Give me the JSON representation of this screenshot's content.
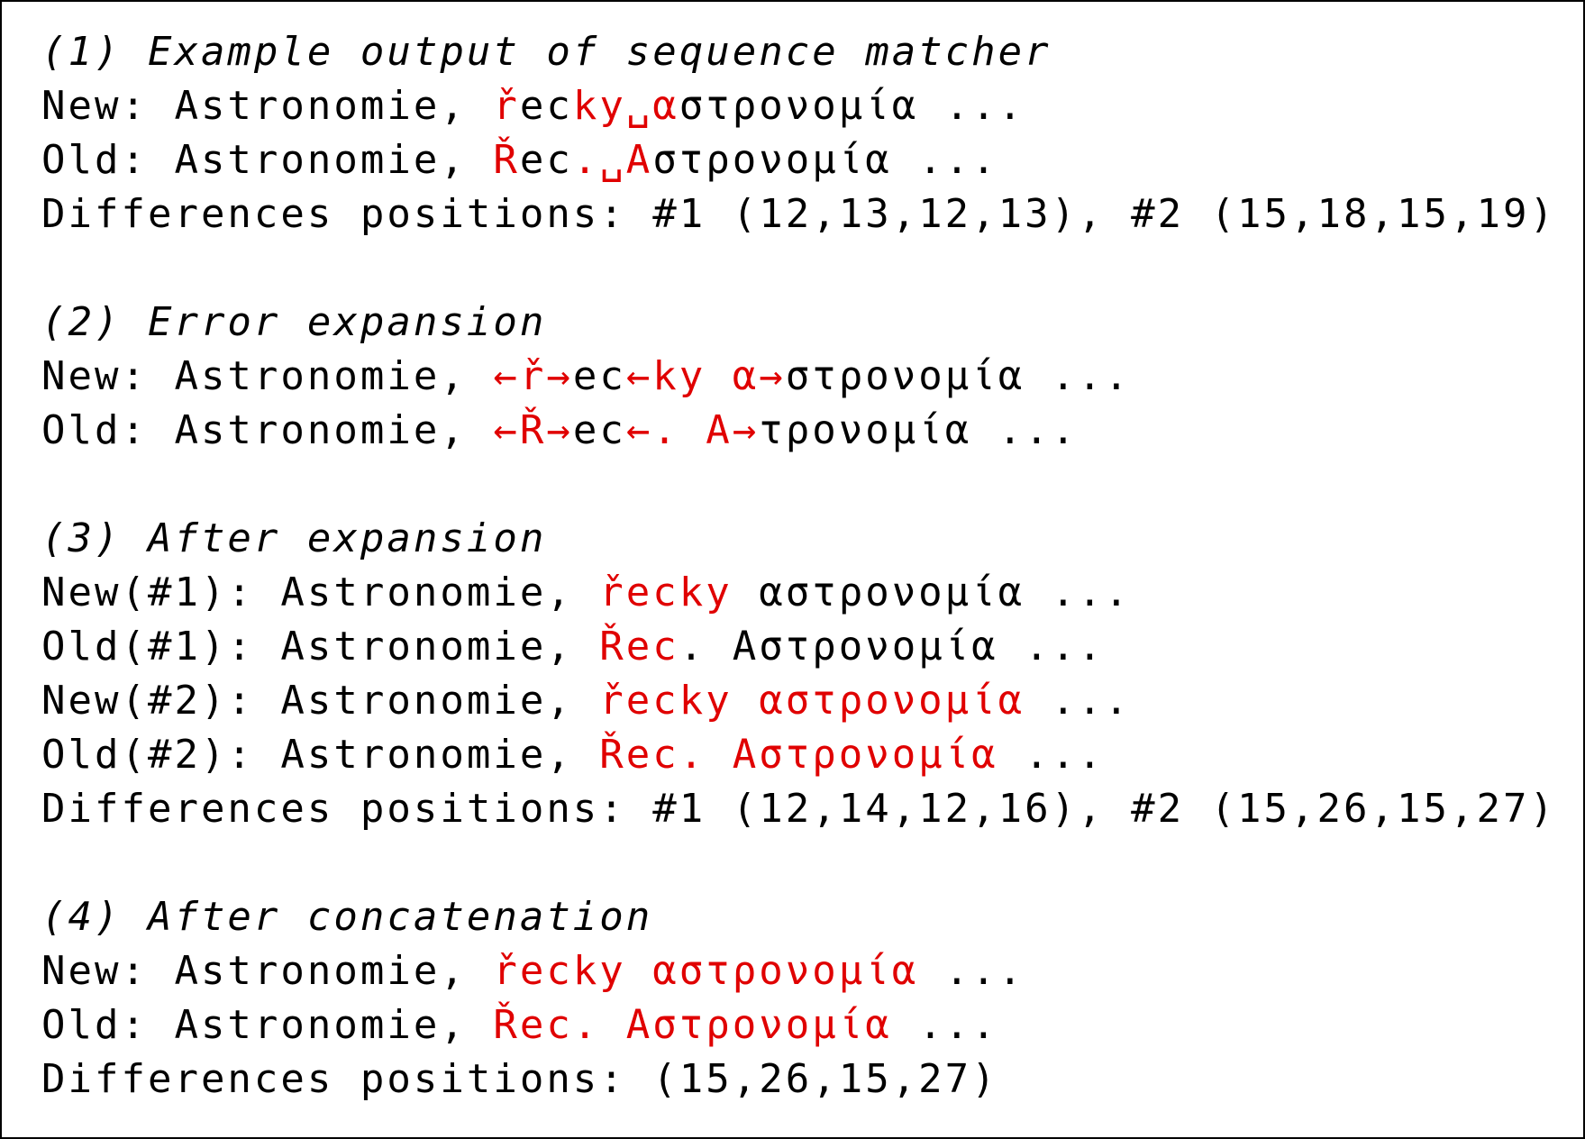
{
  "colors": {
    "highlight": "#e00000",
    "text": "#000000",
    "border": "#000000"
  },
  "section1": {
    "heading": "(1) Example output of sequence matcher",
    "new_prefix": "New: Astronomie, ",
    "new_red_1": "ř",
    "new_plain_1": "ec",
    "new_red_2": "ky␣α",
    "new_plain_2": "στρονομία ...",
    "old_prefix": "Old: Astronomie, ",
    "old_red_1": "Ř",
    "old_plain_1": "ec",
    "old_red_2": ".␣A",
    "old_plain_2": "στρονομία ...",
    "diff": "Differences positions: #1 (12,13,12,13), #2 (15,18,15,19)"
  },
  "section2": {
    "heading": "(2) Error expansion",
    "new_prefix": "New: Astronomie, ",
    "new_red_1": "←ř→",
    "new_plain_1": "ec",
    "new_red_2": "←ky α→",
    "new_plain_2": "στρονομία ...",
    "old_prefix": "Old: Astronomie, ",
    "old_red_1": "←Ř→",
    "old_plain_1": "ec",
    "old_red_2": "←. A→",
    "old_plain_2": "τρονομία ..."
  },
  "section3": {
    "heading": "(3) After expansion",
    "new1_prefix": "New(#1): Astronomie, ",
    "new1_red": "řecky",
    "new1_plain": " αστρονομία ...",
    "old1_prefix": "Old(#1): Astronomie, ",
    "old1_red": "Řec",
    "old1_plain": ". Αστρονομία ...",
    "new2_prefix": "New(#2): Astronomie, ",
    "new2_red": "řecky αστρονομία",
    "new2_plain": " ...",
    "old2_prefix": "Old(#2): Astronomie, ",
    "old2_red": "Řec. Αστρονομία",
    "old2_plain": " ...",
    "diff": "Differences positions: #1 (12,14,12,16), #2 (15,26,15,27)"
  },
  "section4": {
    "heading": "(4) After concatenation",
    "new_prefix": "New: Astronomie, ",
    "new_red": "řecky αστρονομία",
    "new_plain": " ...",
    "old_prefix": "Old: Astronomie, ",
    "old_red": "Řec. Αστρονομία",
    "old_plain": " ...",
    "diff": "Differences positions: (15,26,15,27)"
  }
}
